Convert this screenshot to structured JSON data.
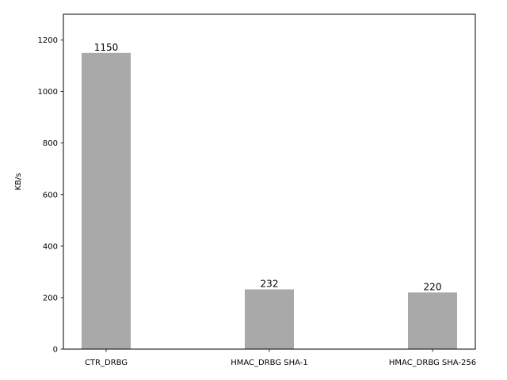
{
  "chart_data": {
    "type": "bar",
    "title": "",
    "xlabel": "",
    "ylabel": "KB/s",
    "categories": [
      "CTR_DRBG",
      "HMAC_DRBG SHA-1",
      "HMAC_DRBG SHA-256"
    ],
    "values": [
      1150,
      232,
      220
    ],
    "data_labels": [
      "1150",
      "232",
      "220"
    ],
    "ylim": [
      0,
      1300
    ],
    "yticks": [
      0,
      200,
      400,
      600,
      800,
      1000,
      1200
    ],
    "bar_color": "#a9a9a9",
    "grid": false,
    "legend": "none"
  }
}
